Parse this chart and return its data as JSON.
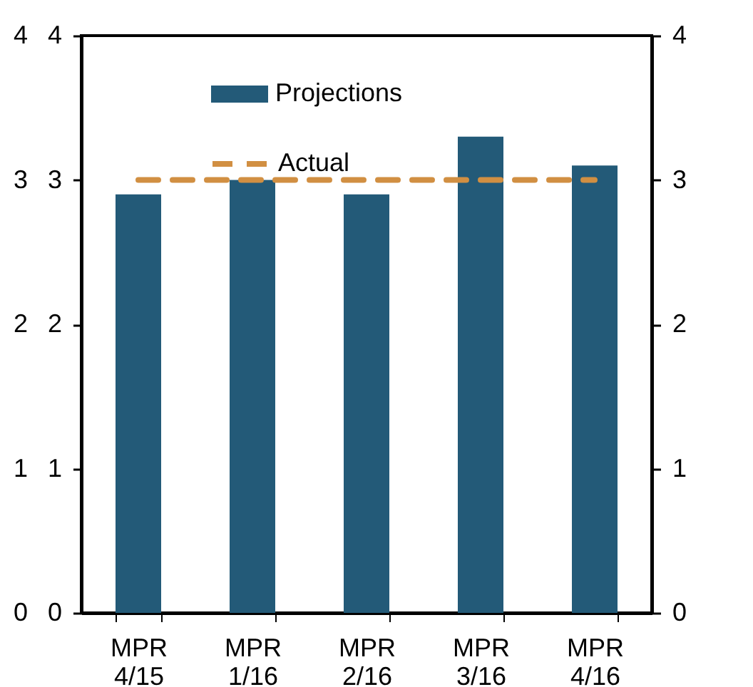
{
  "chart_data": {
    "type": "bar",
    "categories": [
      "MPR 4/15",
      "MPR 1/16",
      "MPR 2/16",
      "MPR 3/16",
      "MPR 4/16"
    ],
    "series": [
      {
        "name": "Projections",
        "color": "#235a78",
        "values": [
          2.9,
          3.0,
          2.9,
          3.3,
          3.1
        ]
      },
      {
        "name": "Actual",
        "type": "line",
        "color": "#d18f42",
        "line_style": "dashed",
        "values": [
          3,
          3,
          3,
          3,
          3
        ]
      }
    ],
    "ylim": [
      0,
      4
    ],
    "yticks": [
      0,
      1,
      2,
      3,
      4
    ],
    "y2lim": [
      0,
      4
    ],
    "y2ticks": [
      0,
      1,
      2,
      3,
      4
    ],
    "y3lim": [
      0,
      4
    ],
    "y3ticks": [
      0,
      1,
      2,
      3,
      4
    ],
    "grid": false,
    "legend": "top",
    "marker": "none"
  }
}
